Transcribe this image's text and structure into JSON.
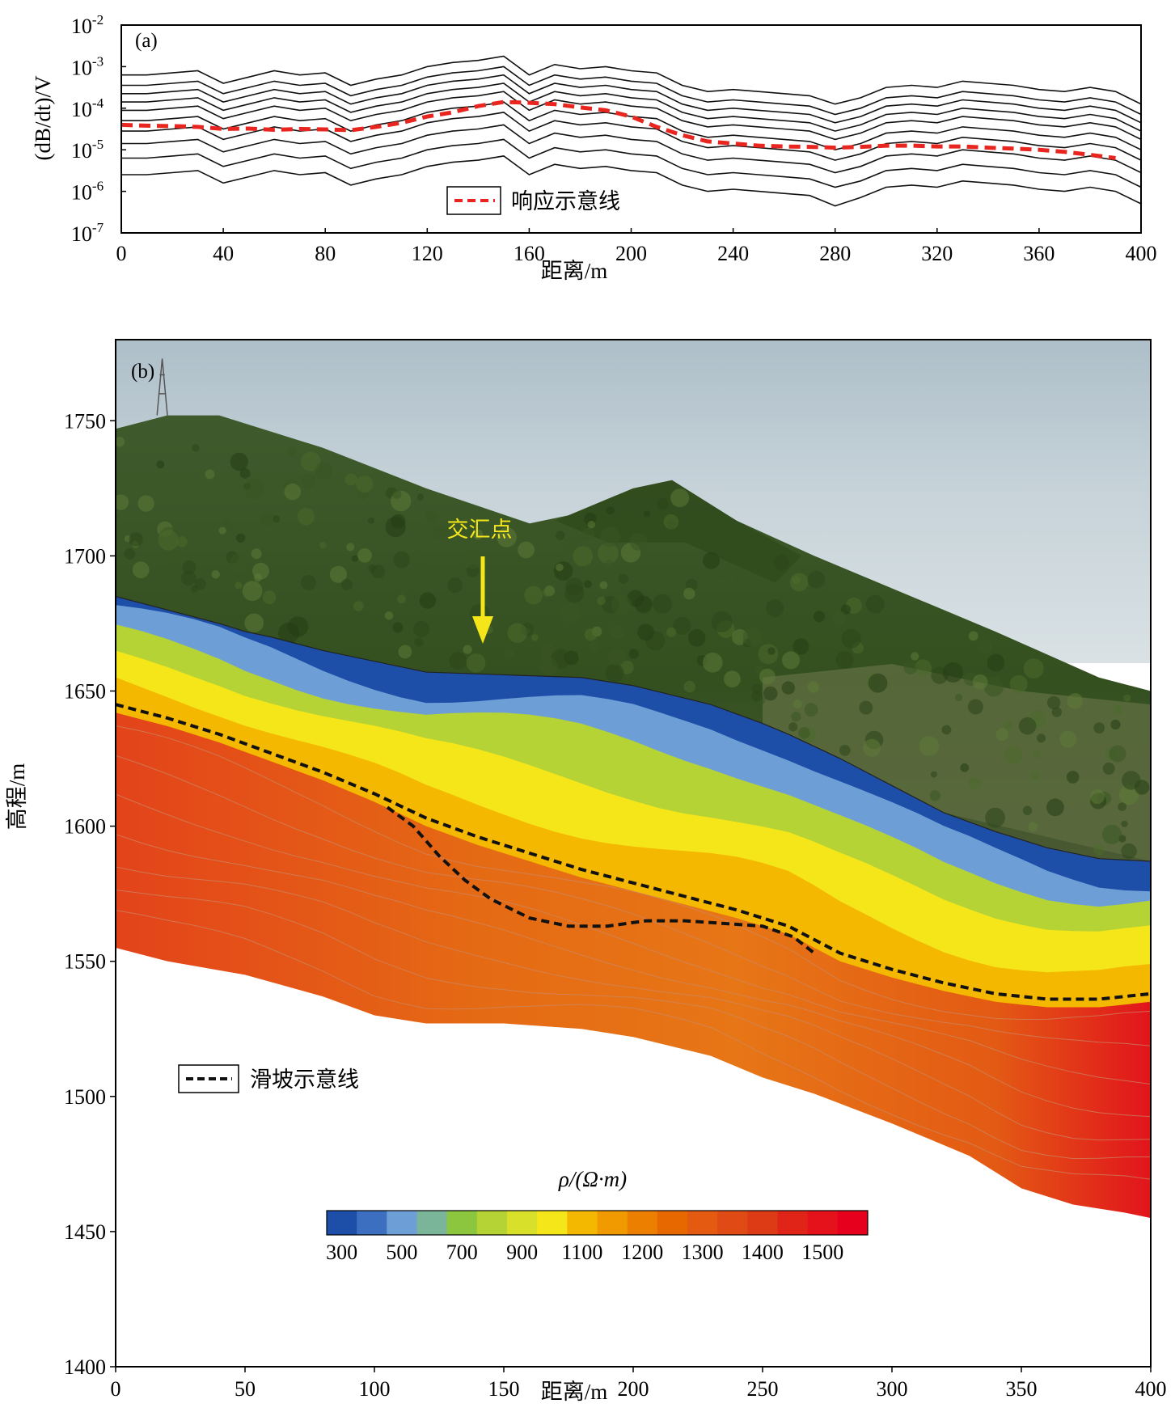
{
  "chart_data": [
    {
      "type": "line",
      "panel_label": "(a)",
      "xlabel": "距离/m",
      "ylabel": "(dB/dt)/V",
      "xlim": [
        0,
        400
      ],
      "ylim_log10": [
        -7,
        -2
      ],
      "y_scale": "log",
      "x_ticks": [
        "0",
        "40",
        "80",
        "120",
        "160",
        "200",
        "240",
        "280",
        "320",
        "360",
        "400"
      ],
      "y_ticks": [
        {
          "base": "10",
          "exp": "-2"
        },
        {
          "base": "10",
          "exp": "-3"
        },
        {
          "base": "10",
          "exp": "-4"
        },
        {
          "base": "10",
          "exp": "-5"
        },
        {
          "base": "10",
          "exp": "-6"
        },
        {
          "base": "10",
          "exp": "-7"
        }
      ],
      "x": [
        0,
        10,
        20,
        30,
        40,
        50,
        60,
        70,
        80,
        90,
        100,
        110,
        120,
        130,
        140,
        150,
        160,
        170,
        180,
        190,
        200,
        210,
        220,
        230,
        240,
        250,
        260,
        270,
        280,
        290,
        300,
        310,
        320,
        330,
        340,
        350,
        360,
        370,
        380,
        390,
        400
      ],
      "channels_log10": [
        [
          -3.2,
          -3.2,
          -3.15,
          -3.1,
          -3.4,
          -3.25,
          -3.1,
          -3.2,
          -3.15,
          -3.45,
          -3.3,
          -3.2,
          -3.0,
          -2.9,
          -2.85,
          -2.75,
          -3.2,
          -2.95,
          -3.05,
          -3.0,
          -3.1,
          -3.15,
          -3.45,
          -3.6,
          -3.55,
          -3.6,
          -3.65,
          -3.7,
          -3.9,
          -3.75,
          -3.5,
          -3.45,
          -3.5,
          -3.35,
          -3.4,
          -3.45,
          -3.55,
          -3.6,
          -3.5,
          -3.6,
          -3.9
        ],
        [
          -3.45,
          -3.45,
          -3.4,
          -3.35,
          -3.65,
          -3.5,
          -3.35,
          -3.45,
          -3.4,
          -3.7,
          -3.55,
          -3.45,
          -3.25,
          -3.15,
          -3.1,
          -3.0,
          -3.45,
          -3.2,
          -3.3,
          -3.25,
          -3.35,
          -3.4,
          -3.7,
          -3.85,
          -3.8,
          -3.85,
          -3.9,
          -3.95,
          -4.15,
          -4.0,
          -3.75,
          -3.7,
          -3.75,
          -3.6,
          -3.65,
          -3.7,
          -3.8,
          -3.85,
          -3.75,
          -3.85,
          -4.15
        ],
        [
          -3.65,
          -3.65,
          -3.6,
          -3.55,
          -3.85,
          -3.7,
          -3.55,
          -3.65,
          -3.6,
          -3.9,
          -3.75,
          -3.65,
          -3.45,
          -3.35,
          -3.3,
          -3.2,
          -3.65,
          -3.4,
          -3.5,
          -3.45,
          -3.55,
          -3.6,
          -3.9,
          -4.05,
          -4.0,
          -4.05,
          -4.1,
          -4.15,
          -4.35,
          -4.2,
          -3.95,
          -3.9,
          -3.95,
          -3.8,
          -3.85,
          -3.9,
          -4.0,
          -4.05,
          -3.95,
          -4.05,
          -4.35
        ],
        [
          -3.85,
          -3.85,
          -3.8,
          -3.75,
          -4.05,
          -3.9,
          -3.75,
          -3.85,
          -3.8,
          -4.1,
          -3.95,
          -3.85,
          -3.65,
          -3.55,
          -3.5,
          -3.4,
          -3.85,
          -3.6,
          -3.7,
          -3.65,
          -3.75,
          -3.8,
          -4.1,
          -4.25,
          -4.2,
          -4.25,
          -4.3,
          -4.35,
          -4.55,
          -4.4,
          -4.15,
          -4.1,
          -4.15,
          -4.0,
          -4.05,
          -4.1,
          -4.2,
          -4.25,
          -4.15,
          -4.25,
          -4.55
        ],
        [
          -4.05,
          -4.05,
          -4.0,
          -3.95,
          -4.25,
          -4.1,
          -3.95,
          -4.05,
          -4.0,
          -4.3,
          -4.15,
          -4.05,
          -3.85,
          -3.75,
          -3.7,
          -3.6,
          -4.05,
          -3.8,
          -3.9,
          -3.85,
          -3.95,
          -4.0,
          -4.3,
          -4.45,
          -4.4,
          -4.45,
          -4.5,
          -4.55,
          -4.75,
          -4.6,
          -4.35,
          -4.3,
          -4.35,
          -4.2,
          -4.25,
          -4.3,
          -4.4,
          -4.45,
          -4.35,
          -4.45,
          -4.75
        ],
        [
          -4.3,
          -4.3,
          -4.25,
          -4.2,
          -4.5,
          -4.35,
          -4.2,
          -4.3,
          -4.25,
          -4.55,
          -4.4,
          -4.3,
          -4.1,
          -4.0,
          -3.95,
          -3.85,
          -4.3,
          -4.05,
          -4.15,
          -4.1,
          -4.2,
          -4.25,
          -4.55,
          -4.7,
          -4.65,
          -4.7,
          -4.75,
          -4.8,
          -5.0,
          -4.85,
          -4.6,
          -4.55,
          -4.6,
          -4.45,
          -4.5,
          -4.55,
          -4.65,
          -4.7,
          -4.6,
          -4.7,
          -5.0
        ],
        [
          -4.55,
          -4.55,
          -4.5,
          -4.45,
          -4.75,
          -4.6,
          -4.45,
          -4.55,
          -4.5,
          -4.8,
          -4.65,
          -4.55,
          -4.35,
          -4.25,
          -4.2,
          -4.1,
          -4.55,
          -4.3,
          -4.4,
          -4.35,
          -4.45,
          -4.5,
          -4.8,
          -4.95,
          -4.9,
          -4.95,
          -5.0,
          -5.05,
          -5.25,
          -5.1,
          -4.85,
          -4.8,
          -4.85,
          -4.7,
          -4.75,
          -4.8,
          -4.9,
          -4.95,
          -4.85,
          -4.95,
          -5.25
        ],
        [
          -4.85,
          -4.85,
          -4.8,
          -4.75,
          -5.05,
          -4.9,
          -4.75,
          -4.85,
          -4.8,
          -5.1,
          -4.95,
          -4.85,
          -4.65,
          -4.55,
          -4.5,
          -4.4,
          -4.85,
          -4.6,
          -4.7,
          -4.65,
          -4.75,
          -4.8,
          -5.1,
          -5.25,
          -5.2,
          -5.25,
          -5.3,
          -5.35,
          -5.55,
          -5.4,
          -5.15,
          -5.1,
          -5.15,
          -5.0,
          -5.05,
          -5.1,
          -5.2,
          -5.25,
          -5.15,
          -5.25,
          -5.55
        ],
        [
          -5.2,
          -5.2,
          -5.15,
          -5.1,
          -5.4,
          -5.25,
          -5.1,
          -5.2,
          -5.15,
          -5.45,
          -5.3,
          -5.2,
          -5.0,
          -4.9,
          -4.85,
          -4.75,
          -5.2,
          -4.95,
          -5.05,
          -5.0,
          -5.1,
          -5.15,
          -5.45,
          -5.6,
          -5.55,
          -5.6,
          -5.65,
          -5.7,
          -5.9,
          -5.75,
          -5.5,
          -5.45,
          -5.5,
          -5.35,
          -5.4,
          -5.45,
          -5.55,
          -5.6,
          -5.5,
          -5.6,
          -5.9
        ],
        [
          -5.6,
          -5.6,
          -5.55,
          -5.5,
          -5.8,
          -5.65,
          -5.5,
          -5.6,
          -5.55,
          -5.85,
          -5.7,
          -5.6,
          -5.4,
          -5.3,
          -5.25,
          -5.15,
          -5.6,
          -5.35,
          -5.45,
          -5.4,
          -5.5,
          -5.55,
          -5.85,
          -6.0,
          -5.95,
          -6.0,
          -6.05,
          -6.1,
          -6.35,
          -6.15,
          -5.9,
          -5.85,
          -5.9,
          -5.75,
          -5.8,
          -5.85,
          -5.95,
          -6.0,
          -5.9,
          -6.0,
          -6.3
        ]
      ],
      "series": [
        {
          "name": "响应示意线",
          "style": "dashed",
          "color": "#e8251f",
          "x": [
            0,
            10,
            20,
            30,
            40,
            50,
            60,
            70,
            80,
            90,
            100,
            110,
            120,
            130,
            140,
            150,
            160,
            170,
            180,
            190,
            200,
            210,
            220,
            230,
            240,
            250,
            260,
            270,
            280,
            290,
            300,
            310,
            320,
            330,
            340,
            350,
            360,
            370,
            380,
            390
          ],
          "log10_values": [
            -4.4,
            -4.42,
            -4.43,
            -4.45,
            -4.5,
            -4.49,
            -4.52,
            -4.5,
            -4.51,
            -4.53,
            -4.45,
            -4.35,
            -4.2,
            -4.1,
            -3.95,
            -3.85,
            -3.87,
            -3.9,
            -3.98,
            -4.05,
            -4.2,
            -4.45,
            -4.65,
            -4.8,
            -4.85,
            -4.9,
            -4.92,
            -4.93,
            -4.95,
            -4.93,
            -4.9,
            -4.9,
            -4.92,
            -4.92,
            -4.95,
            -4.97,
            -5.0,
            -5.05,
            -5.12,
            -5.2
          ]
        }
      ],
      "legend": {
        "position": "bottom-center",
        "label": "响应示意线"
      }
    },
    {
      "type": "heatmap",
      "panel_label": "(b)",
      "xlabel": "距离/m",
      "ylabel": "高程/m",
      "xlim": [
        0,
        400
      ],
      "ylim": [
        1400,
        1780
      ],
      "x_ticks": [
        "0",
        "50",
        "100",
        "150",
        "200",
        "250",
        "300",
        "350",
        "400"
      ],
      "y_ticks": [
        "1400",
        "1450",
        "1500",
        "1550",
        "1600",
        "1650",
        "1700",
        "1750"
      ],
      "annotation": "交汇点",
      "annotation_x": 143,
      "legend": {
        "position": "bottom-left",
        "label": "滑坡示意线"
      },
      "colorbar": {
        "title": "ρ/(Ω·m)",
        "labels": [
          "300",
          "500",
          "700",
          "900",
          "1100",
          "1200",
          "1300",
          "1400",
          "1500"
        ],
        "colors": [
          "#1e4fa8",
          "#3d6fc0",
          "#6d9fd6",
          "#7ab59a",
          "#8cc63f",
          "#b5d335",
          "#d8e02a",
          "#f5e61a",
          "#f5b800",
          "#f09a00",
          "#ec7e00",
          "#e86800",
          "#e45a10",
          "#e04a14",
          "#dd3a16",
          "#e02418",
          "#e5121c",
          "#e6001d"
        ]
      },
      "terrain_surface": {
        "x": [
          0,
          20,
          40,
          50,
          60,
          80,
          100,
          120,
          150,
          180,
          200,
          230,
          250,
          260,
          280,
          300,
          320,
          340,
          360,
          380,
          400
        ],
        "elevation": [
          1685,
          1680,
          1675,
          1672,
          1670,
          1665,
          1661,
          1657,
          1656,
          1655,
          1652,
          1645,
          1638,
          1634,
          1625,
          1615,
          1605,
          1598,
          1592,
          1588,
          1587
        ]
      },
      "section_bottom": {
        "x": [
          0,
          20,
          50,
          80,
          100,
          120,
          150,
          180,
          200,
          230,
          250,
          270,
          300,
          330,
          350,
          370,
          390,
          400
        ],
        "elevation": [
          1555,
          1550,
          1545,
          1537,
          1530,
          1527,
          1527,
          1525,
          1522,
          1515,
          1507,
          1501,
          1490,
          1478,
          1466,
          1460,
          1457,
          1455
        ]
      },
      "slide_lines": [
        {
          "x": [
            0,
            20,
            40,
            60,
            80,
            100,
            120,
            140,
            160,
            180,
            200,
            220,
            240,
            260,
            280,
            300,
            320,
            340,
            360,
            380,
            400
          ],
          "elevation": [
            1645,
            1640,
            1634,
            1627,
            1620,
            1612,
            1603,
            1596,
            1590,
            1584,
            1579,
            1574,
            1569,
            1563,
            1553,
            1547,
            1542,
            1538,
            1536,
            1536,
            1538
          ]
        },
        {
          "x": [
            105,
            115,
            125,
            135,
            145,
            160,
            175,
            190,
            205,
            220,
            235,
            250,
            262,
            270
          ],
          "elevation": [
            1607,
            1600,
            1589,
            1580,
            1573,
            1566,
            1563,
            1563,
            1565,
            1565,
            1564,
            1563,
            1559,
            1553
          ]
        }
      ],
      "layers": [
        {
          "rho": 300,
          "elevation_at_x0": 1683,
          "elevation_at_x400": 1585
        },
        {
          "rho": 500,
          "elevation_at_x0": 1678,
          "elevation_at_x400": 1580
        },
        {
          "rho": 700,
          "elevation_at_x0": 1670,
          "elevation_at_x400": 1572
        },
        {
          "rho": 900,
          "elevation_at_x0": 1660,
          "elevation_at_x400": 1560
        },
        {
          "rho": 1100,
          "elevation_at_x0": 1650,
          "elevation_at_x400": 1548
        }
      ]
    }
  ]
}
